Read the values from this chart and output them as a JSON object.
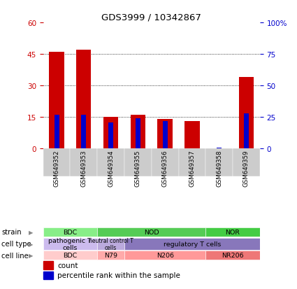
{
  "title": "GDS3999 / 10342867",
  "samples": [
    "GSM649352",
    "GSM649353",
    "GSM649354",
    "GSM649355",
    "GSM649356",
    "GSM649357",
    "GSM649358",
    "GSM649359"
  ],
  "counts": [
    46,
    47,
    15,
    16,
    14,
    13,
    0,
    34
  ],
  "percentile_ranks": [
    27,
    27,
    21,
    24,
    22,
    0,
    1,
    28
  ],
  "ylim_left": [
    0,
    60
  ],
  "ylim_right": [
    0,
    100
  ],
  "yticks_left": [
    0,
    15,
    30,
    45,
    60
  ],
  "yticks_right": [
    0,
    25,
    50,
    75,
    100
  ],
  "ytick_labels_left": [
    "0",
    "15",
    "30",
    "45",
    "60"
  ],
  "ytick_labels_right": [
    "0",
    "25",
    "50",
    "75",
    "100%"
  ],
  "bar_color_red": "#cc0000",
  "bar_color_blue": "#0000cc",
  "bar_width": 0.55,
  "blue_bar_width": 0.18,
  "left_tick_color": "#cc0000",
  "right_tick_color": "#0000cc",
  "xticklabel_bg": "#cccccc",
  "strain_groups": [
    {
      "text": "BDC",
      "col_span": [
        0,
        2
      ],
      "color": "#88ee88"
    },
    {
      "text": "NOD",
      "col_span": [
        2,
        6
      ],
      "color": "#55cc55"
    },
    {
      "text": "NOR",
      "col_span": [
        6,
        8
      ],
      "color": "#44cc44"
    }
  ],
  "cell_type_groups": [
    {
      "text": "pathogenic T\ncells",
      "col_span": [
        0,
        2
      ],
      "color": "#ccbbee"
    },
    {
      "text": "neutral control T\ncells",
      "col_span": [
        2,
        3
      ],
      "color": "#bbaadd"
    },
    {
      "text": "regulatory T cells",
      "col_span": [
        3,
        8
      ],
      "color": "#8877bb"
    }
  ],
  "cell_line_groups": [
    {
      "text": "BDC",
      "col_span": [
        0,
        2
      ],
      "color": "#ffcccc"
    },
    {
      "text": "N79",
      "col_span": [
        2,
        3
      ],
      "color": "#ffaaaa"
    },
    {
      "text": "N206",
      "col_span": [
        3,
        6
      ],
      "color": "#ff9999"
    },
    {
      "text": "NR206",
      "col_span": [
        6,
        8
      ],
      "color": "#ee7777"
    }
  ],
  "row_labels": [
    "strain",
    "cell type",
    "cell line"
  ],
  "legend_red_label": "count",
  "legend_blue_label": "percentile rank within the sample",
  "height_ratios": [
    3.2,
    0.75,
    0.62,
    0.75,
    0.62
  ]
}
